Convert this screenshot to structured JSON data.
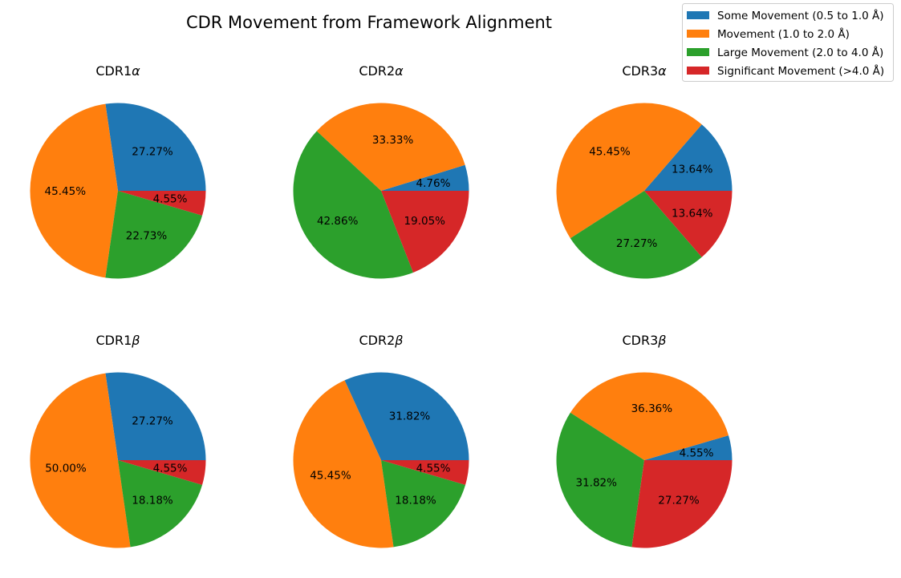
{
  "chart_data": {
    "type": "pie",
    "title": "CDR Movement from Framework Alignment",
    "legend": {
      "placement": "top-right",
      "entries": [
        {
          "label": "Some Movement (0.5 to 1.0 Å)",
          "color": "#1f77b4"
        },
        {
          "label": "Movement (1.0 to 2.0 Å)",
          "color": "#ff7f0e"
        },
        {
          "label": "Large Movement (2.0 to 4.0 Å)",
          "color": "#2ca02c"
        },
        {
          "label": "Significant Movement (>4.0 Å)",
          "color": "#d62728"
        }
      ]
    },
    "pies": [
      {
        "title_base": "CDR1",
        "title_greek": "α",
        "slices": [
          {
            "category": "Some Movement (0.5 to 1.0 Å)",
            "value": 27.27,
            "label": "27.27%"
          },
          {
            "category": "Movement (1.0 to 2.0 Å)",
            "value": 45.45,
            "label": "45.45%"
          },
          {
            "category": "Large Movement (2.0 to 4.0 Å)",
            "value": 22.73,
            "label": "22.73%"
          },
          {
            "category": "Significant Movement (>4.0 Å)",
            "value": 4.55,
            "label": "4.55%"
          }
        ]
      },
      {
        "title_base": "CDR2",
        "title_greek": "α",
        "slices": [
          {
            "category": "Some Movement (0.5 to 1.0 Å)",
            "value": 4.76,
            "label": "4.76%"
          },
          {
            "category": "Movement (1.0 to 2.0 Å)",
            "value": 33.33,
            "label": "33.33%"
          },
          {
            "category": "Large Movement (2.0 to 4.0 Å)",
            "value": 42.86,
            "label": "42.86%"
          },
          {
            "category": "Significant Movement (>4.0 Å)",
            "value": 19.05,
            "label": "19.05%"
          }
        ]
      },
      {
        "title_base": "CDR3",
        "title_greek": "α",
        "slices": [
          {
            "category": "Some Movement (0.5 to 1.0 Å)",
            "value": 13.64,
            "label": "13.64%"
          },
          {
            "category": "Movement (1.0 to 2.0 Å)",
            "value": 45.45,
            "label": "45.45%"
          },
          {
            "category": "Large Movement (2.0 to 4.0 Å)",
            "value": 27.27,
            "label": "27.27%"
          },
          {
            "category": "Significant Movement (>4.0 Å)",
            "value": 13.64,
            "label": "13.64%"
          }
        ]
      },
      {
        "title_base": "CDR1",
        "title_greek": "β",
        "slices": [
          {
            "category": "Some Movement (0.5 to 1.0 Å)",
            "value": 27.27,
            "label": "27.27%"
          },
          {
            "category": "Movement (1.0 to 2.0 Å)",
            "value": 50.0,
            "label": "50.00%"
          },
          {
            "category": "Large Movement (2.0 to 4.0 Å)",
            "value": 18.18,
            "label": "18.18%"
          },
          {
            "category": "Significant Movement (>4.0 Å)",
            "value": 4.55,
            "label": "4.55%"
          }
        ]
      },
      {
        "title_base": "CDR2",
        "title_greek": "β",
        "slices": [
          {
            "category": "Some Movement (0.5 to 1.0 Å)",
            "value": 31.82,
            "label": "31.82%"
          },
          {
            "category": "Movement (1.0 to 2.0 Å)",
            "value": 45.45,
            "label": "45.45%"
          },
          {
            "category": "Large Movement (2.0 to 4.0 Å)",
            "value": 18.18,
            "label": "18.18%"
          },
          {
            "category": "Significant Movement (>4.0 Å)",
            "value": 4.55,
            "label": "4.55%"
          }
        ]
      },
      {
        "title_base": "CDR3",
        "title_greek": "β",
        "slices": [
          {
            "category": "Some Movement (0.5 to 1.0 Å)",
            "value": 4.55,
            "label": "4.55%"
          },
          {
            "category": "Movement (1.0 to 2.0 Å)",
            "value": 36.36,
            "label": "36.36%"
          },
          {
            "category": "Large Movement (2.0 to 4.0 Å)",
            "value": 31.82,
            "label": "31.82%"
          },
          {
            "category": "Significant Movement (>4.0 Å)",
            "value": 27.27,
            "label": "27.27%"
          }
        ]
      }
    ]
  }
}
